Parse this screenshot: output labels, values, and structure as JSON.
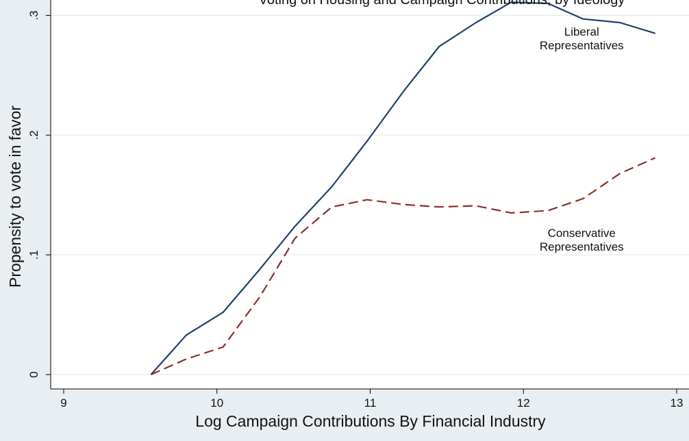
{
  "chart_data": {
    "type": "line",
    "title": "Voting on Housing and Campaign Contributions, by Ideology",
    "xlabel": "Log Campaign Contributions By Financial Industry",
    "ylabel": "Propensity to vote in favor",
    "xlim": [
      9,
      13
    ],
    "ylim": [
      0,
      0.31
    ],
    "x_ticks": [
      {
        "value": 9,
        "label": "9"
      },
      {
        "value": 10,
        "label": "10"
      },
      {
        "value": 11,
        "label": "11"
      },
      {
        "value": 12,
        "label": "12"
      },
      {
        "value": 13,
        "label": "13"
      }
    ],
    "y_ticks": [
      {
        "value": 0,
        "label": "0"
      },
      {
        "value": 0.1,
        "label": ".1"
      },
      {
        "value": 0.2,
        "label": ".2"
      },
      {
        "value": 0.3,
        "label": ".3"
      }
    ],
    "grid": "horizontal",
    "series": [
      {
        "name": "Liberal Representatives",
        "label_lines": [
          "Liberal",
          "Representatives"
        ],
        "label_anchor": [
          12.38,
          0.283
        ],
        "color": "#1f3f6b",
        "dash": "solid",
        "points": [
          [
            9.57,
            0.0
          ],
          [
            9.8,
            0.033
          ],
          [
            10.04,
            0.052
          ],
          [
            10.28,
            0.088
          ],
          [
            10.51,
            0.124
          ],
          [
            10.75,
            0.157
          ],
          [
            10.98,
            0.195
          ],
          [
            11.22,
            0.237
          ],
          [
            11.45,
            0.274
          ],
          [
            11.69,
            0.294
          ],
          [
            11.92,
            0.311
          ],
          [
            12.16,
            0.31
          ],
          [
            12.39,
            0.297
          ],
          [
            12.63,
            0.294
          ],
          [
            12.86,
            0.285
          ]
        ]
      },
      {
        "name": "Conservative Representatives",
        "label_lines": [
          "Conservative",
          "Representatives"
        ],
        "label_anchor": [
          12.38,
          0.115
        ],
        "color": "#8b2d2d",
        "dash": "dashed",
        "points": [
          [
            9.57,
            0.0
          ],
          [
            9.8,
            0.013
          ],
          [
            10.04,
            0.023
          ],
          [
            10.28,
            0.065
          ],
          [
            10.51,
            0.114
          ],
          [
            10.75,
            0.14
          ],
          [
            10.98,
            0.146
          ],
          [
            11.22,
            0.142
          ],
          [
            11.45,
            0.14
          ],
          [
            11.69,
            0.141
          ],
          [
            11.92,
            0.135
          ],
          [
            12.16,
            0.137
          ],
          [
            12.39,
            0.147
          ],
          [
            12.63,
            0.168
          ],
          [
            12.86,
            0.181
          ]
        ]
      }
    ]
  }
}
